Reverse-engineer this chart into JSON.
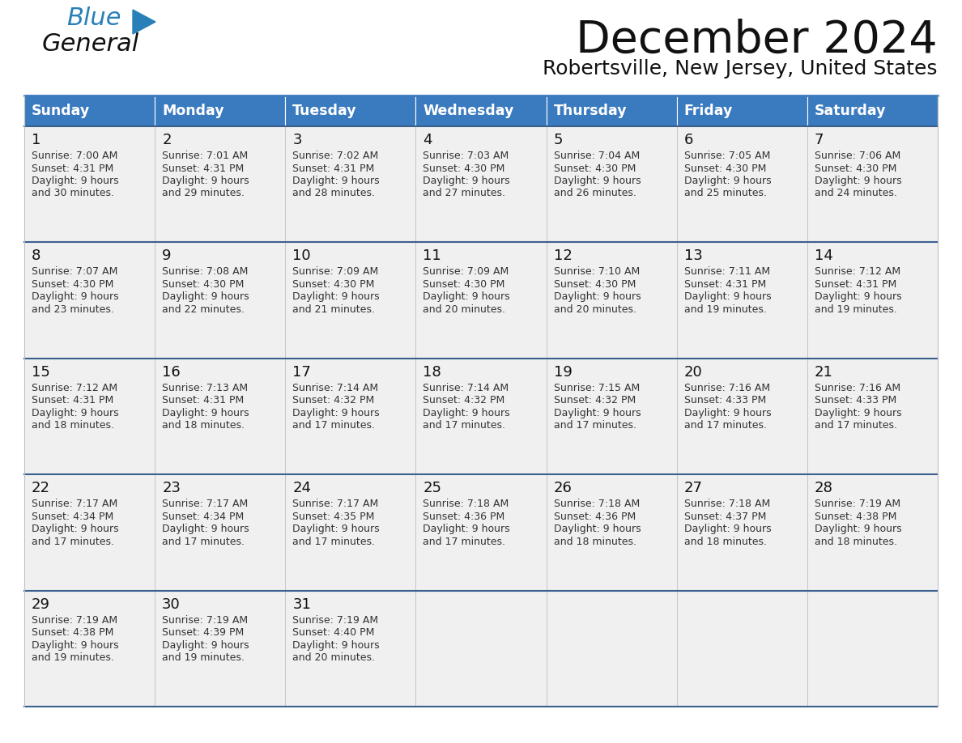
{
  "title": "December 2024",
  "subtitle": "Robertsville, New Jersey, United States",
  "days_of_week": [
    "Sunday",
    "Monday",
    "Tuesday",
    "Wednesday",
    "Thursday",
    "Friday",
    "Saturday"
  ],
  "header_bg": "#3a7abf",
  "header_text": "#FFFFFF",
  "row_bg": "#f0f0f0",
  "cell_border": "#c0c0c0",
  "row_divider": "#3a6090",
  "day_number_color": "#111111",
  "cell_text_color": "#333333",
  "logo_blue": "#2980B9",
  "logo_dark": "#111111",
  "calendar_data": [
    [
      {
        "day": 1,
        "sunrise": "7:00 AM",
        "sunset": "4:31 PM",
        "daylight_min": "30"
      },
      {
        "day": 2,
        "sunrise": "7:01 AM",
        "sunset": "4:31 PM",
        "daylight_min": "29"
      },
      {
        "day": 3,
        "sunrise": "7:02 AM",
        "sunset": "4:31 PM",
        "daylight_min": "28"
      },
      {
        "day": 4,
        "sunrise": "7:03 AM",
        "sunset": "4:30 PM",
        "daylight_min": "27"
      },
      {
        "day": 5,
        "sunrise": "7:04 AM",
        "sunset": "4:30 PM",
        "daylight_min": "26"
      },
      {
        "day": 6,
        "sunrise": "7:05 AM",
        "sunset": "4:30 PM",
        "daylight_min": "25"
      },
      {
        "day": 7,
        "sunrise": "7:06 AM",
        "sunset": "4:30 PM",
        "daylight_min": "24"
      }
    ],
    [
      {
        "day": 8,
        "sunrise": "7:07 AM",
        "sunset": "4:30 PM",
        "daylight_min": "23"
      },
      {
        "day": 9,
        "sunrise": "7:08 AM",
        "sunset": "4:30 PM",
        "daylight_min": "22"
      },
      {
        "day": 10,
        "sunrise": "7:09 AM",
        "sunset": "4:30 PM",
        "daylight_min": "21"
      },
      {
        "day": 11,
        "sunrise": "7:09 AM",
        "sunset": "4:30 PM",
        "daylight_min": "20"
      },
      {
        "day": 12,
        "sunrise": "7:10 AM",
        "sunset": "4:30 PM",
        "daylight_min": "20"
      },
      {
        "day": 13,
        "sunrise": "7:11 AM",
        "sunset": "4:31 PM",
        "daylight_min": "19"
      },
      {
        "day": 14,
        "sunrise": "7:12 AM",
        "sunset": "4:31 PM",
        "daylight_min": "19"
      }
    ],
    [
      {
        "day": 15,
        "sunrise": "7:12 AM",
        "sunset": "4:31 PM",
        "daylight_min": "18"
      },
      {
        "day": 16,
        "sunrise": "7:13 AM",
        "sunset": "4:31 PM",
        "daylight_min": "18"
      },
      {
        "day": 17,
        "sunrise": "7:14 AM",
        "sunset": "4:32 PM",
        "daylight_min": "17"
      },
      {
        "day": 18,
        "sunrise": "7:14 AM",
        "sunset": "4:32 PM",
        "daylight_min": "17"
      },
      {
        "day": 19,
        "sunrise": "7:15 AM",
        "sunset": "4:32 PM",
        "daylight_min": "17"
      },
      {
        "day": 20,
        "sunrise": "7:16 AM",
        "sunset": "4:33 PM",
        "daylight_min": "17"
      },
      {
        "day": 21,
        "sunrise": "7:16 AM",
        "sunset": "4:33 PM",
        "daylight_min": "17"
      }
    ],
    [
      {
        "day": 22,
        "sunrise": "7:17 AM",
        "sunset": "4:34 PM",
        "daylight_min": "17"
      },
      {
        "day": 23,
        "sunrise": "7:17 AM",
        "sunset": "4:34 PM",
        "daylight_min": "17"
      },
      {
        "day": 24,
        "sunrise": "7:17 AM",
        "sunset": "4:35 PM",
        "daylight_min": "17"
      },
      {
        "day": 25,
        "sunrise": "7:18 AM",
        "sunset": "4:36 PM",
        "daylight_min": "17"
      },
      {
        "day": 26,
        "sunrise": "7:18 AM",
        "sunset": "4:36 PM",
        "daylight_min": "18"
      },
      {
        "day": 27,
        "sunrise": "7:18 AM",
        "sunset": "4:37 PM",
        "daylight_min": "18"
      },
      {
        "day": 28,
        "sunrise": "7:19 AM",
        "sunset": "4:38 PM",
        "daylight_min": "18"
      }
    ],
    [
      {
        "day": 29,
        "sunrise": "7:19 AM",
        "sunset": "4:38 PM",
        "daylight_min": "19"
      },
      {
        "day": 30,
        "sunrise": "7:19 AM",
        "sunset": "4:39 PM",
        "daylight_min": "19"
      },
      {
        "day": 31,
        "sunrise": "7:19 AM",
        "sunset": "4:40 PM",
        "daylight_min": "20"
      },
      null,
      null,
      null,
      null
    ]
  ]
}
